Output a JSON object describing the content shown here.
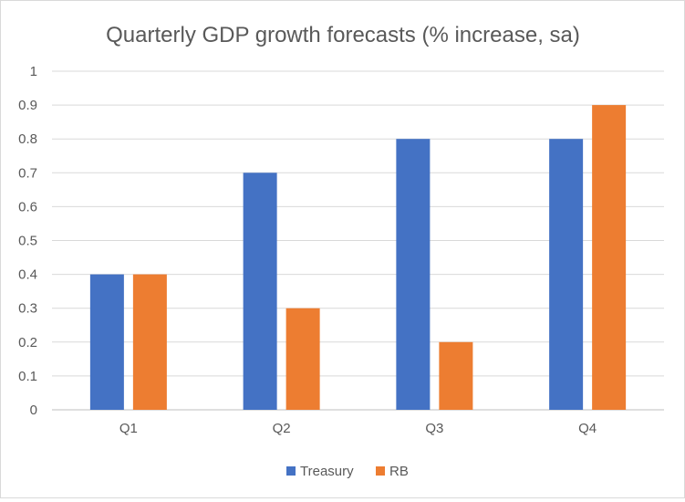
{
  "chart_data": {
    "type": "bar",
    "title": "Quarterly GDP growth forecasts (% increase, sa)",
    "categories": [
      "Q1",
      "Q2",
      "Q3",
      "Q4"
    ],
    "series": [
      {
        "name": "Treasury",
        "values": [
          0.4,
          0.7,
          0.8,
          0.8
        ],
        "color": "#4472C4"
      },
      {
        "name": "RB",
        "values": [
          0.4,
          0.3,
          0.2,
          0.9
        ],
        "color": "#ED7D31"
      }
    ],
    "y_ticks": [
      "0",
      "0.1",
      "0.2",
      "0.3",
      "0.4",
      "0.5",
      "0.6",
      "0.7",
      "0.8",
      "0.9",
      "1"
    ],
    "ylim": [
      0,
      1
    ],
    "grid": true,
    "legend_position": "bottom"
  }
}
